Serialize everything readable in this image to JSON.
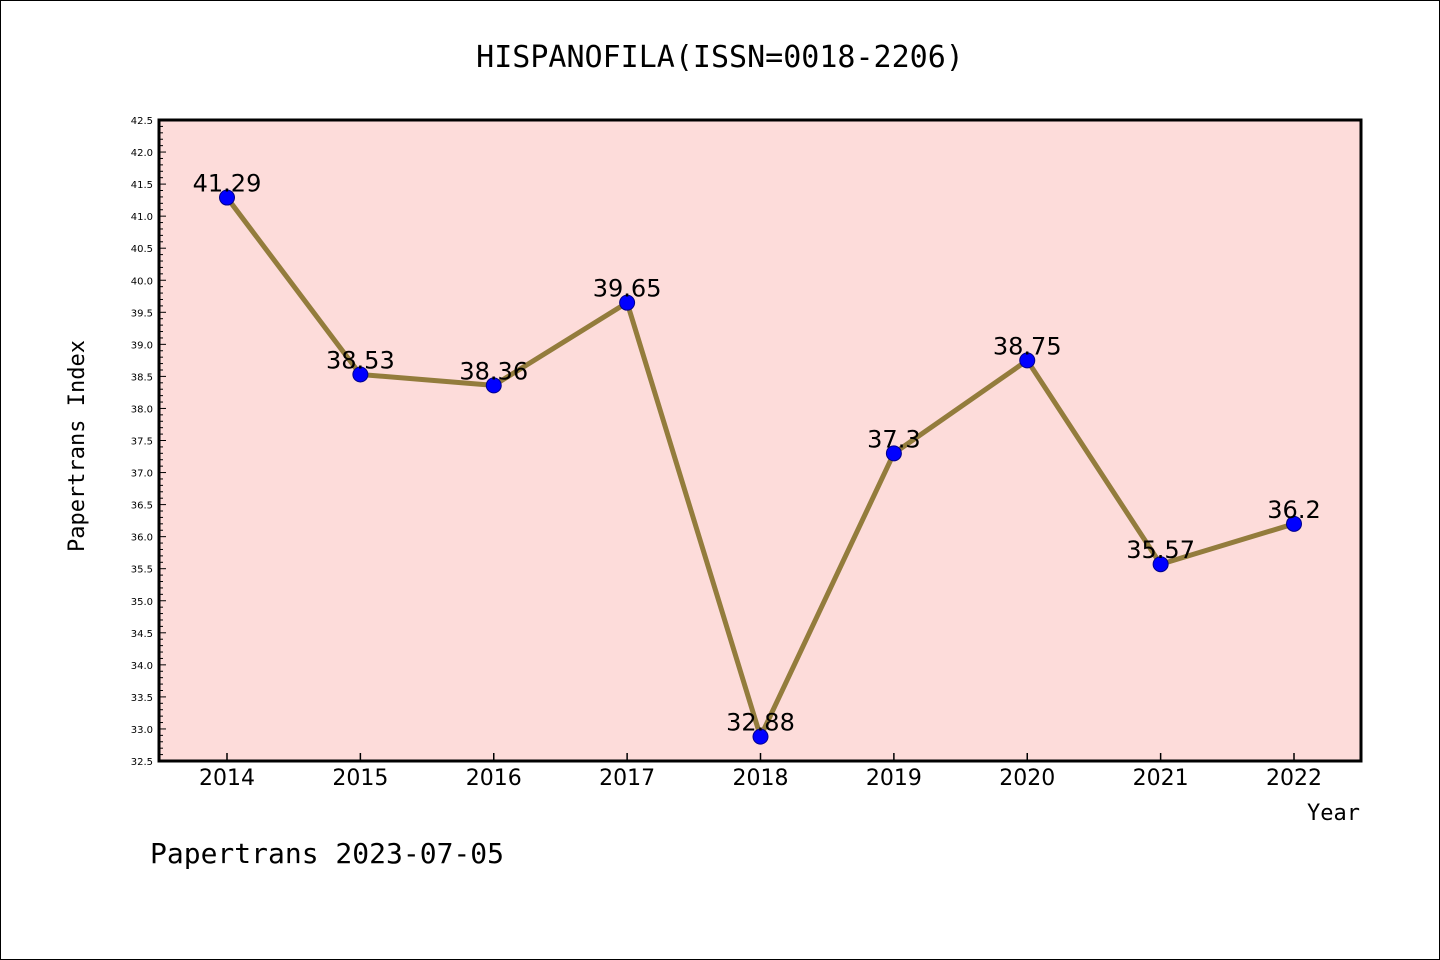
{
  "chart_data": {
    "type": "line",
    "title": "HISPANOFILA(ISSN=0018-2206)",
    "xlabel": "Year",
    "ylabel": "Papertrans Index",
    "categories": [
      "2014",
      "2015",
      "2016",
      "2017",
      "2018",
      "2019",
      "2020",
      "2021",
      "2022"
    ],
    "values": [
      41.29,
      38.53,
      38.36,
      39.65,
      32.88,
      37.3,
      38.75,
      35.57,
      36.2
    ],
    "data_labels": [
      "41.29",
      "38.53",
      "38.36",
      "39.65",
      "32.88",
      "37.3",
      "38.75",
      "35.57",
      "36.2"
    ],
    "ylim": [
      32.5,
      42.5
    ],
    "y_major_step": 0.5,
    "y_ticks": [
      "32.5",
      "33.0",
      "33.5",
      "34.0",
      "34.5",
      "35.0",
      "35.5",
      "36.0",
      "36.5",
      "37.0",
      "37.5",
      "38.0",
      "38.5",
      "39.0",
      "39.5",
      "40.0",
      "40.5",
      "41.0",
      "41.5",
      "42.0",
      "42.5"
    ],
    "grid": false,
    "colors": {
      "plot_background": "#fddcda",
      "line": "#937c3c",
      "marker": "#0000ff"
    }
  },
  "footer": "Papertrans 2023-07-05"
}
